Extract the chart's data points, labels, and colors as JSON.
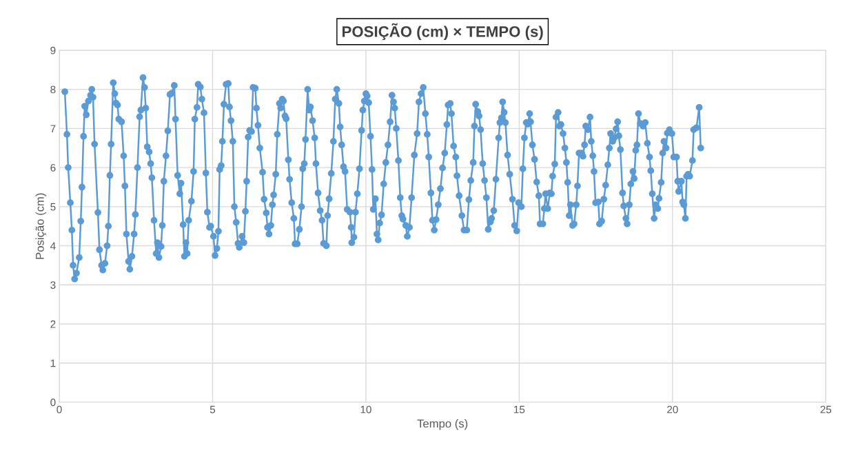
{
  "chart_data": {
    "type": "line",
    "title": "POSIÇÃO (cm) × TEMPO (s)",
    "xlabel": "Tempo (s)",
    "ylabel": "Posição (cm)",
    "xlim": [
      0,
      25
    ],
    "xticks": [
      0,
      5,
      10,
      15,
      20,
      25
    ],
    "ylim": [
      0,
      9
    ],
    "yticks": [
      0,
      1,
      2,
      3,
      4,
      5,
      6,
      7,
      8,
      9
    ],
    "grid": true,
    "marker": "circle",
    "line_style": "solid",
    "series": [
      {
        "color": "#5b9bd5",
        "x": [
          0.18,
          0.25,
          0.29,
          0.36,
          0.41,
          0.45,
          0.5,
          0.56,
          0.65,
          0.7,
          0.74,
          0.79,
          0.83,
          0.88,
          0.95,
          1.02,
          1.06,
          1.1,
          1.15,
          1.26,
          1.31,
          1.38,
          1.42,
          1.49,
          1.56,
          1.6,
          1.65,
          1.69,
          1.76,
          1.81,
          1.85,
          1.9,
          1.94,
          2.03,
          2.1,
          2.14,
          2.19,
          2.26,
          2.3,
          2.37,
          2.44,
          2.48,
          2.55,
          2.62,
          2.66,
          2.73,
          2.78,
          2.82,
          2.87,
          2.93,
          2.98,
          3.02,
          3.09,
          3.16,
          3.2,
          3.25,
          3.32,
          3.36,
          3.41,
          3.48,
          3.54,
          3.61,
          3.66,
          3.75,
          3.79,
          3.86,
          3.93,
          3.97,
          4.04,
          4.08,
          4.13,
          4.17,
          4.22,
          4.31,
          4.38,
          4.42,
          4.49,
          4.53,
          4.6,
          4.65,
          4.72,
          4.78,
          4.83,
          4.9,
          4.94,
          5.03,
          5.08,
          5.14,
          5.19,
          5.23,
          5.28,
          5.32,
          5.37,
          5.44,
          5.51,
          5.55,
          5.6,
          5.66,
          5.71,
          5.77,
          5.83,
          5.87,
          5.96,
          6.02,
          6.07,
          6.11,
          6.16,
          6.21,
          6.27,
          6.32,
          6.39,
          6.43,
          6.48,
          6.54,
          6.63,
          6.68,
          6.75,
          6.79,
          6.84,
          6.9,
          6.95,
          6.99,
          7.06,
          7.11,
          7.18,
          7.22,
          7.27,
          7.31,
          7.36,
          7.4,
          7.47,
          7.51,
          7.58,
          7.65,
          7.69,
          7.76,
          7.83,
          7.9,
          7.94,
          7.99,
          8.03,
          8.1,
          8.15,
          8.19,
          8.26,
          8.33,
          8.37,
          8.44,
          8.51,
          8.57,
          8.62,
          8.71,
          8.75,
          8.8,
          8.87,
          8.94,
          9.0,
          9.05,
          9.12,
          9.16,
          9.21,
          9.27,
          9.32,
          9.39,
          9.48,
          9.52,
          9.54,
          9.61,
          9.66,
          9.72,
          9.79,
          9.86,
          9.9,
          9.95,
          10.0,
          10.04,
          10.09,
          10.15,
          10.2,
          10.24,
          10.31,
          10.36,
          10.4,
          10.45,
          10.51,
          10.58,
          10.65,
          10.72,
          10.79,
          10.85,
          10.9,
          10.94,
          10.99,
          11.06,
          11.12,
          11.17,
          11.21,
          11.3,
          11.35,
          11.42,
          11.49,
          11.58,
          11.67,
          11.73,
          11.8,
          11.87,
          11.94,
          12.0,
          12.05,
          12.12,
          12.17,
          12.23,
          12.29,
          12.36,
          12.43,
          12.5,
          12.57,
          12.64,
          12.68,
          12.75,
          12.79,
          12.86,
          12.93,
          12.97,
          13.04,
          13.13,
          13.2,
          13.29,
          13.36,
          13.42,
          13.5,
          13.54,
          13.58,
          13.65,
          13.69,
          13.74,
          13.81,
          13.87,
          13.93,
          13.99,
          14.06,
          14.1,
          14.17,
          14.24,
          14.33,
          14.37,
          14.42,
          14.46,
          14.51,
          14.55,
          14.62,
          14.69,
          14.78,
          14.85,
          14.92,
          14.98,
          15.07,
          15.12,
          15.17,
          15.23,
          15.28,
          15.34,
          15.37,
          15.43,
          15.5,
          15.57,
          15.64,
          15.68,
          15.77,
          15.82,
          15.86,
          15.93,
          16.0,
          16.05,
          16.09,
          16.16,
          16.2,
          16.27,
          16.31,
          16.36,
          16.43,
          16.49,
          16.54,
          16.58,
          16.63,
          16.67,
          16.74,
          16.79,
          16.86,
          16.9,
          16.95,
          17.04,
          17.08,
          17.13,
          17.17,
          17.24,
          17.31,
          17.35,
          17.4,
          17.44,
          17.49,
          17.58,
          17.62,
          17.69,
          17.76,
          17.82,
          17.89,
          17.94,
          17.98,
          18.05,
          18.1,
          18.16,
          18.21,
          18.25,
          18.3,
          18.37,
          18.41,
          18.48,
          18.52,
          18.59,
          18.64,
          18.71,
          18.75,
          18.8,
          18.84,
          18.89,
          18.95,
          19.04,
          19.11,
          19.18,
          19.25,
          19.29,
          19.34,
          19.4,
          19.45,
          19.52,
          19.56,
          19.63,
          19.68,
          19.72,
          19.79,
          19.83,
          19.9,
          19.98,
          20.04,
          20.13,
          20.17,
          20.2,
          20.29,
          20.33,
          20.37,
          20.42,
          20.46,
          20.51,
          20.56,
          20.65,
          20.69,
          20.78,
          20.87,
          20.92
        ],
        "values": [
          7.94,
          6.85,
          6.0,
          5.1,
          4.4,
          3.5,
          3.15,
          3.3,
          3.7,
          4.63,
          5.5,
          6.8,
          7.57,
          7.35,
          7.7,
          7.85,
          8.0,
          7.8,
          6.6,
          4.85,
          3.9,
          3.5,
          3.38,
          3.55,
          4.0,
          4.5,
          5.8,
          6.6,
          8.17,
          7.89,
          7.65,
          7.6,
          7.24,
          7.17,
          6.3,
          5.53,
          4.3,
          3.6,
          3.4,
          3.73,
          4.3,
          4.8,
          6.0,
          7.3,
          7.47,
          8.3,
          8.05,
          7.52,
          6.53,
          6.4,
          6.1,
          5.74,
          4.65,
          3.8,
          4.08,
          3.7,
          3.98,
          4.52,
          5.65,
          6.3,
          6.94,
          7.87,
          7.9,
          8.1,
          7.24,
          5.8,
          5.33,
          5.6,
          4.54,
          3.73,
          4.08,
          3.8,
          4.65,
          5.14,
          5.9,
          7.24,
          7.54,
          8.13,
          8.06,
          7.75,
          7.4,
          5.86,
          4.86,
          4.47,
          4.5,
          4.24,
          3.75,
          3.93,
          4.37,
          5.95,
          6.05,
          6.67,
          7.62,
          8.13,
          8.15,
          7.55,
          7.2,
          6.67,
          5.0,
          4.6,
          4.06,
          3.96,
          4.24,
          4.08,
          4.88,
          5.65,
          6.78,
          6.95,
          6.92,
          8.05,
          8.03,
          7.52,
          7.08,
          6.5,
          5.88,
          5.19,
          4.84,
          4.47,
          4.3,
          4.52,
          5.05,
          5.3,
          5.83,
          6.85,
          7.64,
          7.52,
          7.75,
          7.7,
          7.32,
          7.25,
          6.2,
          5.7,
          5.1,
          4.7,
          4.05,
          4.05,
          4.42,
          5.0,
          5.97,
          6.1,
          6.72,
          8.0,
          7.47,
          7.55,
          7.2,
          6.76,
          6.1,
          5.35,
          4.9,
          4.65,
          4.06,
          4.0,
          4.77,
          5.2,
          5.85,
          6.67,
          7.75,
          8.0,
          7.64,
          7.04,
          6.58,
          6.02,
          5.9,
          4.93,
          4.86,
          4.47,
          4.08,
          4.22,
          4.86,
          5.33,
          5.97,
          6.95,
          7.47,
          7.7,
          7.89,
          7.83,
          7.66,
          6.8,
          5.95,
          4.93,
          5.2,
          4.3,
          4.15,
          4.58,
          4.79,
          5.58,
          6.13,
          6.58,
          7.17,
          7.85,
          7.68,
          7.52,
          7.0,
          6.18,
          5.23,
          4.77,
          4.68,
          4.52,
          4.24,
          4.47,
          5.23,
          6.32,
          6.87,
          7.68,
          7.89,
          8.05,
          7.38,
          6.85,
          6.27,
          5.35,
          4.65,
          4.4,
          4.67,
          5.05,
          5.46,
          5.99,
          6.37,
          7.1,
          7.6,
          7.64,
          7.38,
          6.55,
          6.27,
          5.79,
          5.28,
          4.77,
          4.4,
          4.4,
          5.18,
          5.67,
          6.13,
          7.06,
          7.62,
          7.43,
          7.32,
          6.97,
          6.1,
          5.67,
          5.23,
          4.42,
          4.61,
          4.7,
          4.9,
          5.7,
          6.76,
          7.15,
          7.27,
          7.68,
          7.41,
          7.15,
          6.32,
          5.83,
          5.19,
          4.52,
          4.38,
          5.1,
          5.0,
          5.97,
          6.76,
          7.15,
          7.11,
          7.38,
          7.17,
          6.58,
          6.21,
          5.63,
          5.28,
          4.56,
          4.56,
          4.95,
          5.33,
          4.95,
          5.35,
          5.33,
          5.78,
          6.09,
          7.29,
          7.41,
          7.06,
          7.1,
          6.87,
          6.5,
          6.13,
          5.62,
          4.77,
          5.05,
          4.52,
          4.56,
          5.05,
          5.53,
          6.37,
          6.37,
          6.29,
          6.58,
          7.06,
          6.97,
          7.29,
          6.67,
          6.3,
          5.9,
          5.1,
          5.12,
          4.56,
          4.63,
          5.19,
          5.55,
          6.07,
          6.5,
          6.87,
          6.67,
          6.76,
          6.99,
          7.17,
          6.81,
          6.46,
          5.35,
          5.02,
          4.7,
          4.56,
          5.05,
          5.58,
          5.9,
          5.72,
          6.44,
          6.58,
          7.38,
          7.13,
          7.06,
          7.15,
          6.62,
          6.27,
          5.92,
          5.33,
          4.7,
          5.05,
          4.95,
          5.21,
          5.62,
          6.37,
          6.67,
          6.5,
          6.88,
          6.97,
          6.87,
          6.27,
          6.27,
          5.65,
          5.39,
          5.65,
          5.12,
          5.05,
          4.7,
          5.78,
          5.83,
          5.78,
          6.18,
          6.97,
          7.02,
          7.54,
          6.5
        ]
      }
    ]
  }
}
